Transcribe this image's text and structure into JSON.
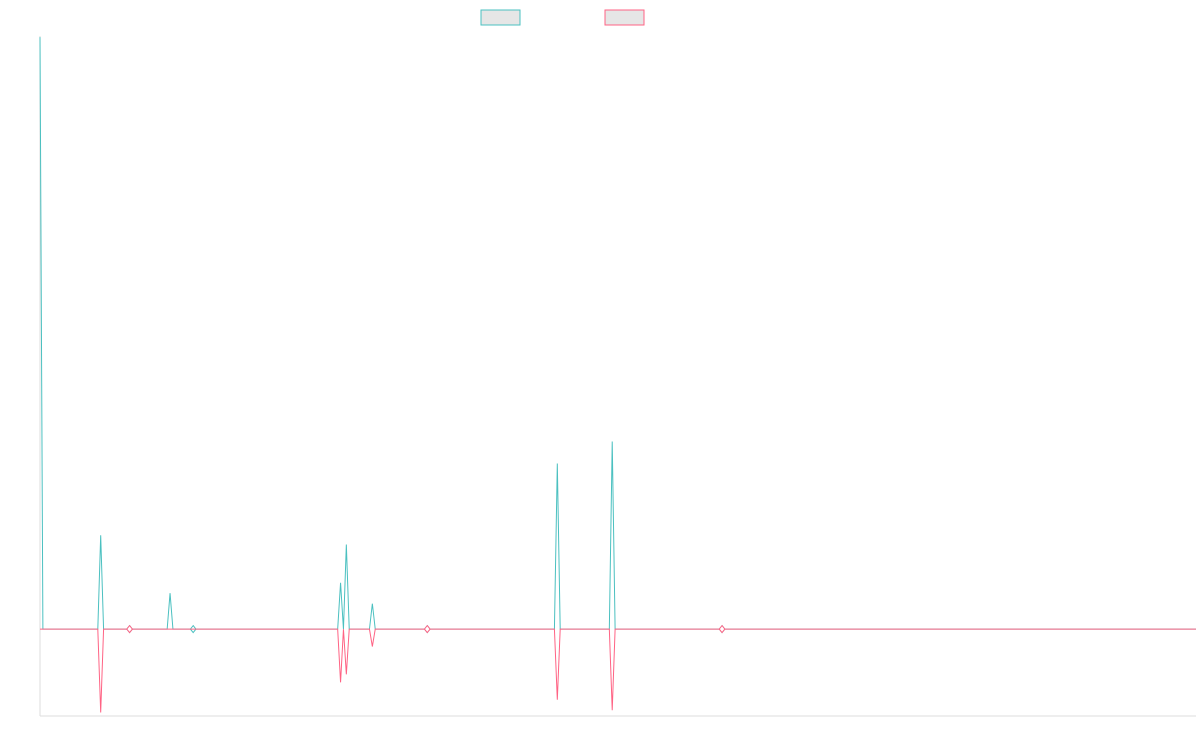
{
  "chart_data": {
    "type": "line",
    "title": "",
    "xlabel": "",
    "ylabel": "",
    "grid": false,
    "legend_position": "top-center",
    "x_range": [
      0,
      200
    ],
    "ylim": [
      -75,
      512
    ],
    "series": [
      {
        "color": "#4bc0c0",
        "values": [
          {
            "x": 0,
            "y": 511
          },
          {
            "x": 0.5,
            "y": 0
          },
          {
            "x": 10,
            "y": 0
          },
          {
            "x": 10.5,
            "y": 81
          },
          {
            "x": 11,
            "y": 0
          },
          {
            "x": 22,
            "y": 0
          },
          {
            "x": 22.5,
            "y": 31
          },
          {
            "x": 23,
            "y": 0
          },
          {
            "x": 51.5,
            "y": 0
          },
          {
            "x": 52,
            "y": 40
          },
          {
            "x": 52.5,
            "y": 0
          },
          {
            "x": 53,
            "y": 73
          },
          {
            "x": 53.5,
            "y": 0
          },
          {
            "x": 57,
            "y": 0
          },
          {
            "x": 57.5,
            "y": 22
          },
          {
            "x": 58,
            "y": 0
          },
          {
            "x": 89,
            "y": 0
          },
          {
            "x": 89.5,
            "y": 143
          },
          {
            "x": 90,
            "y": 0
          },
          {
            "x": 98.5,
            "y": 0
          },
          {
            "x": 99,
            "y": 162
          },
          {
            "x": 99.5,
            "y": 0
          },
          {
            "x": 200,
            "y": 0
          }
        ],
        "markers": [
          {
            "x": 15.5,
            "y": 0
          },
          {
            "x": 26.5,
            "y": 0
          },
          {
            "x": 67,
            "y": 0
          },
          {
            "x": 118,
            "y": 0
          }
        ]
      },
      {
        "color": "#ff6384",
        "values": [
          {
            "x": 0,
            "y": 0
          },
          {
            "x": 10,
            "y": 0
          },
          {
            "x": 10.5,
            "y": -72
          },
          {
            "x": 11,
            "y": 0
          },
          {
            "x": 51.5,
            "y": 0
          },
          {
            "x": 52,
            "y": -46
          },
          {
            "x": 52.5,
            "y": 0
          },
          {
            "x": 53,
            "y": -39
          },
          {
            "x": 53.5,
            "y": 0
          },
          {
            "x": 57,
            "y": 0
          },
          {
            "x": 57.5,
            "y": -15
          },
          {
            "x": 58,
            "y": 0
          },
          {
            "x": 89,
            "y": 0
          },
          {
            "x": 89.5,
            "y": -61
          },
          {
            "x": 90,
            "y": 0
          },
          {
            "x": 98.5,
            "y": 0
          },
          {
            "x": 99,
            "y": -70
          },
          {
            "x": 99.5,
            "y": 0
          },
          {
            "x": 200,
            "y": 0
          }
        ],
        "markers": [
          {
            "x": 15.5,
            "y": 0
          },
          {
            "x": 67,
            "y": 0
          },
          {
            "x": 118,
            "y": 0
          }
        ]
      }
    ]
  }
}
